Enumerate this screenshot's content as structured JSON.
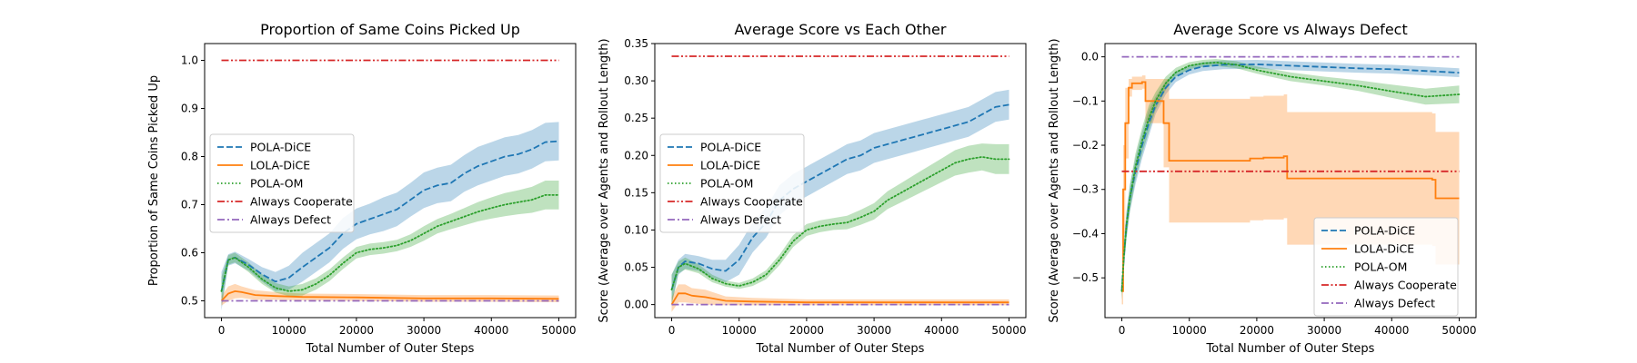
{
  "chart_data": [
    {
      "type": "line",
      "title": "Proportion of Same Coins Picked Up",
      "xlabel": "Total Number of Outer Steps",
      "ylabel": "Proportion of Same Coins Picked Up",
      "xlim": [
        -2500,
        52500
      ],
      "ylim": [
        0.465,
        1.035
      ],
      "xticks": [
        0,
        10000,
        20000,
        30000,
        40000,
        50000
      ],
      "xtick_labels": [
        "0",
        "10000",
        "20000",
        "30000",
        "40000",
        "50000"
      ],
      "yticks": [
        0.5,
        0.6,
        0.7,
        0.8,
        0.9,
        1.0
      ],
      "ytick_labels": [
        "0.5",
        "0.6",
        "0.7",
        "0.8",
        "0.9",
        "1.0"
      ],
      "legend": "center-left",
      "series": [
        {
          "name": "POLA-DiCE",
          "color": "#1f77b4",
          "style": "dashed",
          "x": [
            0,
            1000,
            2000,
            4000,
            6000,
            8000,
            10000,
            12000,
            14000,
            16000,
            18000,
            20000,
            22000,
            24000,
            26000,
            28000,
            30000,
            32000,
            34000,
            36000,
            38000,
            40000,
            42000,
            44000,
            46000,
            48000,
            50000
          ],
          "y": [
            0.52,
            0.585,
            0.59,
            0.575,
            0.555,
            0.54,
            0.548,
            0.57,
            0.59,
            0.61,
            0.64,
            0.66,
            0.67,
            0.68,
            0.69,
            0.71,
            0.73,
            0.74,
            0.745,
            0.765,
            0.78,
            0.79,
            0.8,
            0.805,
            0.815,
            0.83,
            0.832
          ],
          "band": [
            0.04,
            0.012,
            0.012,
            0.012,
            0.015,
            0.02,
            0.025,
            0.03,
            0.03,
            0.03,
            0.032,
            0.032,
            0.032,
            0.035,
            0.035,
            0.035,
            0.037,
            0.037,
            0.038,
            0.038,
            0.04,
            0.04,
            0.04,
            0.04,
            0.04,
            0.04,
            0.04
          ]
        },
        {
          "name": "LOLA-DiCE",
          "color": "#ff7f0e",
          "style": "solid",
          "x": [
            0,
            1000,
            2000,
            3000,
            5000,
            8000,
            12000,
            20000,
            30000,
            40000,
            50000
          ],
          "y": [
            0.5,
            0.515,
            0.52,
            0.518,
            0.512,
            0.51,
            0.508,
            0.507,
            0.505,
            0.505,
            0.504
          ],
          "band": [
            0.01,
            0.015,
            0.015,
            0.012,
            0.01,
            0.008,
            0.007,
            0.007,
            0.007,
            0.007,
            0.007
          ]
        },
        {
          "name": "POLA-OM",
          "color": "#2ca02c",
          "style": "dotted",
          "x": [
            0,
            1000,
            2000,
            4000,
            6000,
            8000,
            10000,
            12000,
            14000,
            16000,
            18000,
            20000,
            22000,
            24000,
            26000,
            28000,
            30000,
            32000,
            34000,
            36000,
            38000,
            40000,
            42000,
            44000,
            46000,
            48000,
            50000
          ],
          "y": [
            0.52,
            0.585,
            0.59,
            0.57,
            0.545,
            0.527,
            0.52,
            0.523,
            0.535,
            0.553,
            0.578,
            0.6,
            0.607,
            0.61,
            0.615,
            0.625,
            0.64,
            0.655,
            0.665,
            0.675,
            0.685,
            0.693,
            0.7,
            0.705,
            0.71,
            0.72,
            0.72
          ],
          "band": [
            0.03,
            0.01,
            0.01,
            0.01,
            0.01,
            0.01,
            0.01,
            0.012,
            0.012,
            0.012,
            0.012,
            0.012,
            0.012,
            0.012,
            0.012,
            0.013,
            0.015,
            0.015,
            0.016,
            0.018,
            0.02,
            0.022,
            0.024,
            0.025,
            0.027,
            0.03,
            0.03
          ]
        },
        {
          "name": "Always Cooperate",
          "color": "#d62728",
          "style": "dashdotdot",
          "x": [
            0,
            50000
          ],
          "y": [
            1.0,
            1.0
          ]
        },
        {
          "name": "Always Defect",
          "color": "#9467bd",
          "style": "dashdot",
          "x": [
            0,
            50000
          ],
          "y": [
            0.5,
            0.5
          ]
        }
      ]
    },
    {
      "type": "line",
      "title": "Average Score vs Each Other",
      "xlabel": "Total Number of Outer Steps",
      "ylabel": "Score (Average over Agents and Rollout Length)",
      "xlim": [
        -2500,
        52500
      ],
      "ylim": [
        -0.0175,
        0.35
      ],
      "xticks": [
        0,
        10000,
        20000,
        30000,
        40000,
        50000
      ],
      "xtick_labels": [
        "0",
        "10000",
        "20000",
        "30000",
        "40000",
        "50000"
      ],
      "yticks": [
        0.0,
        0.05,
        0.1,
        0.15,
        0.2,
        0.25,
        0.3,
        0.35
      ],
      "ytick_labels": [
        "0.00",
        "0.05",
        "0.10",
        "0.15",
        "0.20",
        "0.25",
        "0.30",
        "0.35"
      ],
      "legend": "center-left",
      "series": [
        {
          "name": "POLA-DiCE",
          "color": "#1f77b4",
          "style": "dashed",
          "x": [
            0,
            1000,
            2000,
            4000,
            6000,
            8000,
            10000,
            12000,
            14000,
            16000,
            18000,
            20000,
            22000,
            24000,
            26000,
            28000,
            30000,
            32000,
            34000,
            36000,
            38000,
            40000,
            42000,
            44000,
            46000,
            48000,
            50000
          ],
          "y": [
            0.02,
            0.05,
            0.058,
            0.055,
            0.048,
            0.045,
            0.06,
            0.09,
            0.11,
            0.14,
            0.155,
            0.165,
            0.175,
            0.185,
            0.195,
            0.2,
            0.21,
            0.215,
            0.22,
            0.225,
            0.23,
            0.235,
            0.24,
            0.245,
            0.255,
            0.265,
            0.268
          ],
          "band": [
            0.02,
            0.01,
            0.01,
            0.01,
            0.012,
            0.015,
            0.02,
            0.02,
            0.02,
            0.02,
            0.02,
            0.02,
            0.02,
            0.02,
            0.02,
            0.02,
            0.02,
            0.02,
            0.02,
            0.02,
            0.02,
            0.02,
            0.02,
            0.02,
            0.02,
            0.02,
            0.02
          ]
        },
        {
          "name": "LOLA-DiCE",
          "color": "#ff7f0e",
          "style": "solid",
          "x": [
            0,
            1000,
            2000,
            3000,
            5000,
            8000,
            12000,
            20000,
            30000,
            40000,
            50000
          ],
          "y": [
            0.0,
            0.015,
            0.015,
            0.012,
            0.01,
            0.005,
            0.004,
            0.003,
            0.003,
            0.003,
            0.003
          ],
          "band": [
            0.01,
            0.012,
            0.012,
            0.01,
            0.01,
            0.006,
            0.005,
            0.004,
            0.004,
            0.004,
            0.004
          ]
        },
        {
          "name": "POLA-OM",
          "color": "#2ca02c",
          "style": "dotted",
          "x": [
            0,
            1000,
            2000,
            4000,
            6000,
            8000,
            10000,
            12000,
            14000,
            16000,
            18000,
            20000,
            22000,
            24000,
            26000,
            28000,
            30000,
            32000,
            34000,
            36000,
            38000,
            40000,
            42000,
            44000,
            46000,
            48000,
            50000
          ],
          "y": [
            0.02,
            0.05,
            0.055,
            0.048,
            0.035,
            0.028,
            0.025,
            0.03,
            0.04,
            0.06,
            0.085,
            0.1,
            0.105,
            0.108,
            0.11,
            0.117,
            0.125,
            0.14,
            0.15,
            0.16,
            0.17,
            0.18,
            0.19,
            0.195,
            0.198,
            0.195,
            0.195
          ],
          "band": [
            0.02,
            0.008,
            0.008,
            0.006,
            0.005,
            0.004,
            0.004,
            0.005,
            0.006,
            0.007,
            0.008,
            0.008,
            0.008,
            0.008,
            0.009,
            0.01,
            0.011,
            0.012,
            0.013,
            0.014,
            0.015,
            0.016,
            0.017,
            0.018,
            0.018,
            0.02,
            0.02
          ]
        },
        {
          "name": "Always Cooperate",
          "color": "#d62728",
          "style": "dashdotdot",
          "x": [
            0,
            50000
          ],
          "y": [
            0.333,
            0.333
          ]
        },
        {
          "name": "Always Defect",
          "color": "#9467bd",
          "style": "dashdot",
          "x": [
            0,
            50000
          ],
          "y": [
            0.0,
            0.0
          ]
        }
      ]
    },
    {
      "type": "line",
      "title": "Average Score vs Always Defect",
      "xlabel": "Total Number of Outer Steps",
      "ylabel": "Score (Average over Agents and Rollout Length)",
      "xlim": [
        -2500,
        52500
      ],
      "ylim": [
        -0.59,
        0.03
      ],
      "xticks": [
        0,
        10000,
        20000,
        30000,
        40000,
        50000
      ],
      "xtick_labels": [
        "0",
        "10000",
        "20000",
        "30000",
        "40000",
        "50000"
      ],
      "yticks": [
        -0.5,
        -0.4,
        -0.3,
        -0.2,
        -0.1,
        0.0
      ],
      "ytick_labels": [
        "−0.5",
        "−0.4",
        "−0.3",
        "−0.2",
        "−0.1",
        "0.0"
      ],
      "legend": "bottom-right",
      "series": [
        {
          "name": "POLA-DiCE",
          "color": "#1f77b4",
          "style": "dashed",
          "x": [
            0,
            300,
            700,
            1200,
            2000,
            3000,
            4000,
            5000,
            6500,
            8000,
            10000,
            12000,
            15000,
            20000,
            25000,
            30000,
            35000,
            40000,
            45000,
            50000
          ],
          "y": [
            -0.53,
            -0.45,
            -0.38,
            -0.32,
            -0.26,
            -0.2,
            -0.15,
            -0.11,
            -0.07,
            -0.045,
            -0.03,
            -0.022,
            -0.018,
            -0.017,
            -0.02,
            -0.023,
            -0.026,
            -0.028,
            -0.032,
            -0.036
          ],
          "band": [
            0.02,
            0.03,
            0.03,
            0.03,
            0.03,
            0.03,
            0.03,
            0.02,
            0.015,
            0.012,
            0.01,
            0.01,
            0.01,
            0.01,
            0.01,
            0.01,
            0.01,
            0.01,
            0.01,
            0.01
          ]
        },
        {
          "name": "LOLA-DiCE",
          "color": "#ff7f0e",
          "style": "step",
          "x": [
            0,
            200,
            500,
            1000,
            1500,
            3000,
            3500,
            5500,
            6200,
            7000,
            12000,
            17000,
            19000,
            21000,
            24000,
            24500,
            30000,
            40000,
            46000,
            46500,
            50000
          ],
          "y": [
            -0.53,
            -0.3,
            -0.15,
            -0.07,
            -0.06,
            -0.057,
            -0.1,
            -0.1,
            -0.15,
            -0.235,
            -0.235,
            -0.235,
            -0.23,
            -0.228,
            -0.225,
            -0.275,
            -0.275,
            -0.275,
            -0.278,
            -0.32,
            -0.32
          ],
          "band": [
            0.03,
            0.1,
            0.08,
            0.02,
            0.015,
            0.015,
            0.05,
            0.05,
            0.1,
            0.14,
            0.14,
            0.14,
            0.14,
            0.14,
            0.14,
            0.15,
            0.15,
            0.15,
            0.15,
            0.15,
            0.15
          ]
        },
        {
          "name": "POLA-OM",
          "color": "#2ca02c",
          "style": "dotted",
          "x": [
            0,
            300,
            700,
            1200,
            2000,
            3000,
            4000,
            5000,
            6500,
            8000,
            10000,
            12000,
            14000,
            17000,
            20000,
            25000,
            30000,
            35000,
            40000,
            45000,
            50000
          ],
          "y": [
            -0.53,
            -0.45,
            -0.38,
            -0.32,
            -0.25,
            -0.19,
            -0.14,
            -0.1,
            -0.06,
            -0.035,
            -0.02,
            -0.015,
            -0.013,
            -0.018,
            -0.03,
            -0.045,
            -0.055,
            -0.065,
            -0.078,
            -0.09,
            -0.085
          ],
          "band": [
            0.02,
            0.03,
            0.03,
            0.03,
            0.03,
            0.03,
            0.03,
            0.02,
            0.015,
            0.01,
            0.008,
            0.008,
            0.008,
            0.008,
            0.008,
            0.01,
            0.01,
            0.012,
            0.015,
            0.018,
            0.02
          ]
        },
        {
          "name": "Always Cooperate",
          "color": "#d62728",
          "style": "dashdotdot",
          "x": [
            0,
            50000
          ],
          "y": [
            -0.259,
            -0.259
          ]
        },
        {
          "name": "Always Defect",
          "color": "#9467bd",
          "style": "dashdot",
          "x": [
            0,
            50000
          ],
          "y": [
            0.0,
            0.0
          ]
        }
      ]
    }
  ]
}
